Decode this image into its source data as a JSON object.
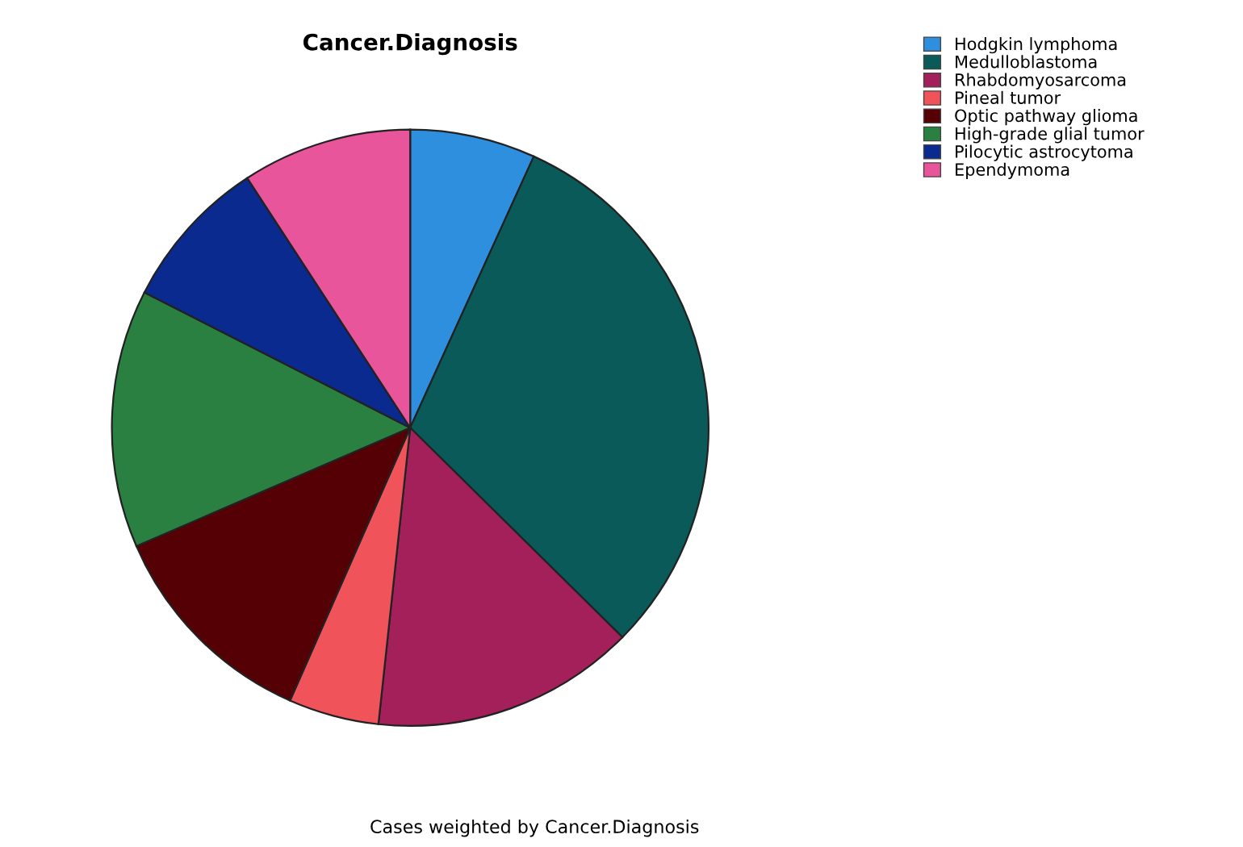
{
  "chart_data": {
    "type": "pie",
    "title": "Cancer.Diagnosis",
    "categories": [
      "Hodgkin lymphoma",
      "Medulloblastoma",
      "Rhabdomyosarcoma",
      "Pineal tumor",
      "Optic pathway glioma",
      "High-grade glial tumor",
      "Pilocytic astrocytoma",
      "Ependymoma"
    ],
    "values": [
      6.8,
      30.6,
      14.3,
      4.9,
      11.9,
      14.0,
      8.3,
      9.2
    ],
    "colors": [
      "#2f8fdf",
      "#0b5a5a",
      "#a3205a",
      "#f0545a",
      "#550005",
      "#2a8040",
      "#0a2a90",
      "#e8559a"
    ],
    "legend": "top right",
    "annotations": [
      "Cases weighted by Cancer.Diagnosis"
    ]
  }
}
